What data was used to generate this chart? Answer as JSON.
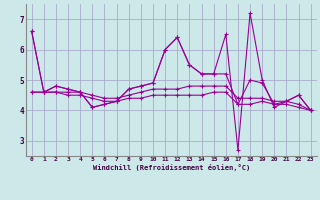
{
  "xlabel": "Windchill (Refroidissement éolien,°C)",
  "bg_color": "#cce8e8",
  "grid_color": "#aaaacc",
  "line_color": "#990099",
  "xlim": [
    -0.5,
    23.5
  ],
  "ylim": [
    2.5,
    7.5
  ],
  "yticks": [
    3,
    4,
    5,
    6,
    7
  ],
  "xticks": [
    0,
    1,
    2,
    3,
    4,
    5,
    6,
    7,
    8,
    9,
    10,
    11,
    12,
    13,
    14,
    15,
    16,
    17,
    18,
    19,
    20,
    21,
    22,
    23
  ],
  "series": [
    [
      6.6,
      4.6,
      4.8,
      4.7,
      4.6,
      4.1,
      4.2,
      4.3,
      4.7,
      4.8,
      4.9,
      6.0,
      6.4,
      5.5,
      5.2,
      5.2,
      6.5,
      2.7,
      7.2,
      5.0,
      4.1,
      4.3,
      4.5,
      4.0
    ],
    [
      6.6,
      4.6,
      4.8,
      4.7,
      4.6,
      4.1,
      4.2,
      4.3,
      4.7,
      4.8,
      4.9,
      6.0,
      6.4,
      5.5,
      5.2,
      5.2,
      5.2,
      4.2,
      5.0,
      4.9,
      4.2,
      4.3,
      4.5,
      4.0
    ],
    [
      4.6,
      4.6,
      4.6,
      4.6,
      4.6,
      4.5,
      4.4,
      4.4,
      4.5,
      4.6,
      4.7,
      4.7,
      4.7,
      4.8,
      4.8,
      4.8,
      4.8,
      4.4,
      4.4,
      4.4,
      4.3,
      4.3,
      4.2,
      4.0
    ],
    [
      4.6,
      4.6,
      4.6,
      4.5,
      4.5,
      4.4,
      4.3,
      4.3,
      4.4,
      4.4,
      4.5,
      4.5,
      4.5,
      4.5,
      4.5,
      4.6,
      4.6,
      4.2,
      4.2,
      4.3,
      4.2,
      4.2,
      4.1,
      4.0
    ]
  ]
}
